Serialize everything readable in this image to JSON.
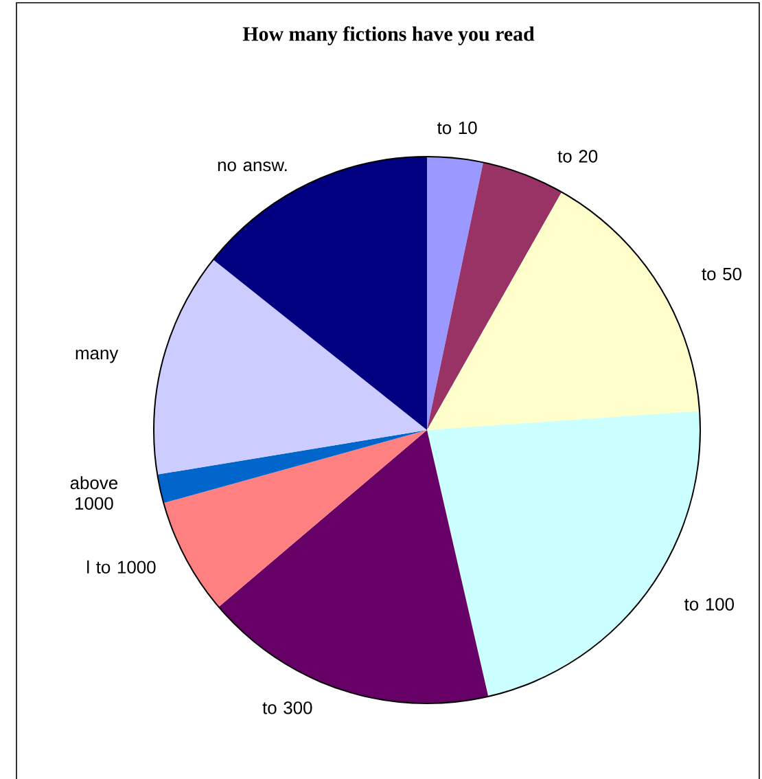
{
  "chart_data": {
    "type": "pie",
    "title": "How many fictions have you read",
    "categories": [
      "to 10",
      "to 20",
      "to 50",
      "to 100",
      "to  300",
      "l to 1000",
      "above 1000",
      "many",
      "no answ."
    ],
    "values": [
      3.3,
      4.9,
      15.7,
      22.5,
      17.4,
      6.9,
      1.7,
      13.3,
      14.3
    ],
    "colors": [
      "#9999ff",
      "#993366",
      "#ffffcc",
      "#ccffff",
      "#660066",
      "#ff8080",
      "#0066cc",
      "#ccccff",
      "#000080"
    ]
  }
}
